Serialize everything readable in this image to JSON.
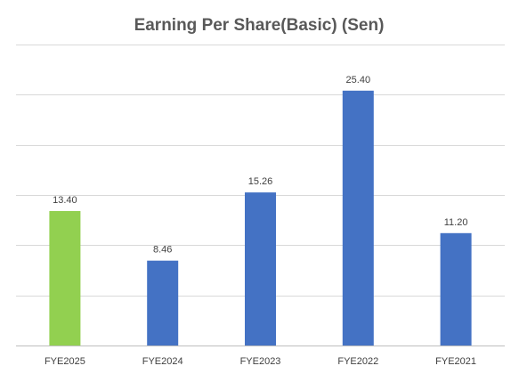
{
  "chart_data": {
    "type": "bar",
    "title": "Earning Per Share(Basic) (Sen)",
    "xlabel": "",
    "ylabel": "",
    "categories": [
      "FYE2025",
      "FYE2024",
      "FYE2023",
      "FYE2022",
      "FYE2021"
    ],
    "values": [
      13.4,
      8.46,
      15.26,
      25.4,
      11.2
    ],
    "value_labels": [
      "13.40",
      "8.46",
      "15.26",
      "25.40",
      "11.20"
    ],
    "ylim": [
      0,
      30
    ],
    "grid": true,
    "legend": "none",
    "colors": {
      "highlight": "#92d050",
      "bar": "#4472c4",
      "grid": "#d9d9d9"
    },
    "bar_colors": [
      "#92d050",
      "#4472c4",
      "#4472c4",
      "#4472c4",
      "#4472c4"
    ]
  }
}
